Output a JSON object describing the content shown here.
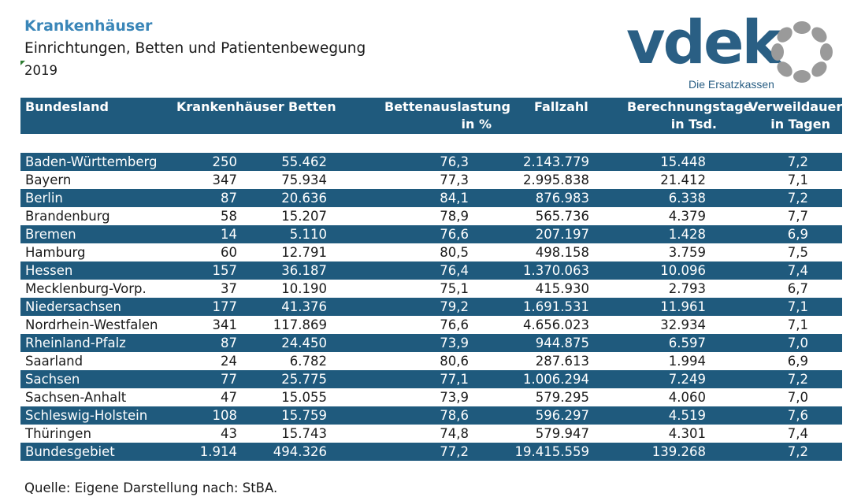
{
  "header": {
    "title": "Krankenhäuser",
    "subtitle": "Einrichtungen, Betten und Patientenbewegung",
    "year": "2019"
  },
  "logo": {
    "text": "vdek",
    "subtext": "Die Ersatzkassen",
    "color": "#2a5f84",
    "ring_color": "#9a9a9a"
  },
  "table": {
    "header_color": "#1f5a7d",
    "columns": [
      {
        "line1": "Bundesland",
        "line2": ""
      },
      {
        "line1": "Krankenhäuser",
        "line2": ""
      },
      {
        "line1": "Betten",
        "line2": ""
      },
      {
        "line1": "Bettenauslastung",
        "line2": "in %"
      },
      {
        "line1": "Fallzahl",
        "line2": ""
      },
      {
        "line1": "Berechnungstage",
        "line2": "in Tsd."
      },
      {
        "line1": "Verweildauer",
        "line2": "in Tagen"
      }
    ],
    "rows": [
      [
        "Baden-Württemberg",
        "250",
        "55.462",
        "76,3",
        "2.143.779",
        "15.448",
        "7,2"
      ],
      [
        "Bayern",
        "347",
        "75.934",
        "77,3",
        "2.995.838",
        "21.412",
        "7,1"
      ],
      [
        "Berlin",
        "87",
        "20.636",
        "84,1",
        "876.983",
        "6.338",
        "7,2"
      ],
      [
        "Brandenburg",
        "58",
        "15.207",
        "78,9",
        "565.736",
        "4.379",
        "7,7"
      ],
      [
        "Bremen",
        "14",
        "5.110",
        "76,6",
        "207.197",
        "1.428",
        "6,9"
      ],
      [
        "Hamburg",
        "60",
        "12.791",
        "80,5",
        "498.158",
        "3.759",
        "7,5"
      ],
      [
        "Hessen",
        "157",
        "36.187",
        "76,4",
        "1.370.063",
        "10.096",
        "7,4"
      ],
      [
        "Mecklenburg-Vorp.",
        "37",
        "10.190",
        "75,1",
        "415.930",
        "2.793",
        "6,7"
      ],
      [
        "Niedersachsen",
        "177",
        "41.376",
        "79,2",
        "1.691.531",
        "11.961",
        "7,1"
      ],
      [
        "Nordrhein-Westfalen",
        "341",
        "117.869",
        "76,6",
        "4.656.023",
        "32.934",
        "7,1"
      ],
      [
        "Rheinland-Pfalz",
        "87",
        "24.450",
        "73,9",
        "944.875",
        "6.597",
        "7,0"
      ],
      [
        "Saarland",
        "24",
        "6.782",
        "80,6",
        "287.613",
        "1.994",
        "6,9"
      ],
      [
        "Sachsen",
        "77",
        "25.775",
        "77,1",
        "1.006.294",
        "7.249",
        "7,2"
      ],
      [
        "Sachsen-Anhalt",
        "47",
        "15.055",
        "73,9",
        "579.295",
        "4.060",
        "7,0"
      ],
      [
        "Schleswig-Holstein",
        "108",
        "15.759",
        "78,6",
        "596.297",
        "4.519",
        "7,6"
      ],
      [
        "Thüringen",
        "43",
        "15.743",
        "74,8",
        "579.947",
        "4.301",
        "7,4"
      ],
      [
        "Bundesgebiet",
        "1.914",
        "494.326",
        "77,2",
        "19.415.559",
        "139.268",
        "7,2"
      ]
    ]
  },
  "footer": {
    "source": "Quelle: Eigene Darstellung nach: StBA."
  }
}
